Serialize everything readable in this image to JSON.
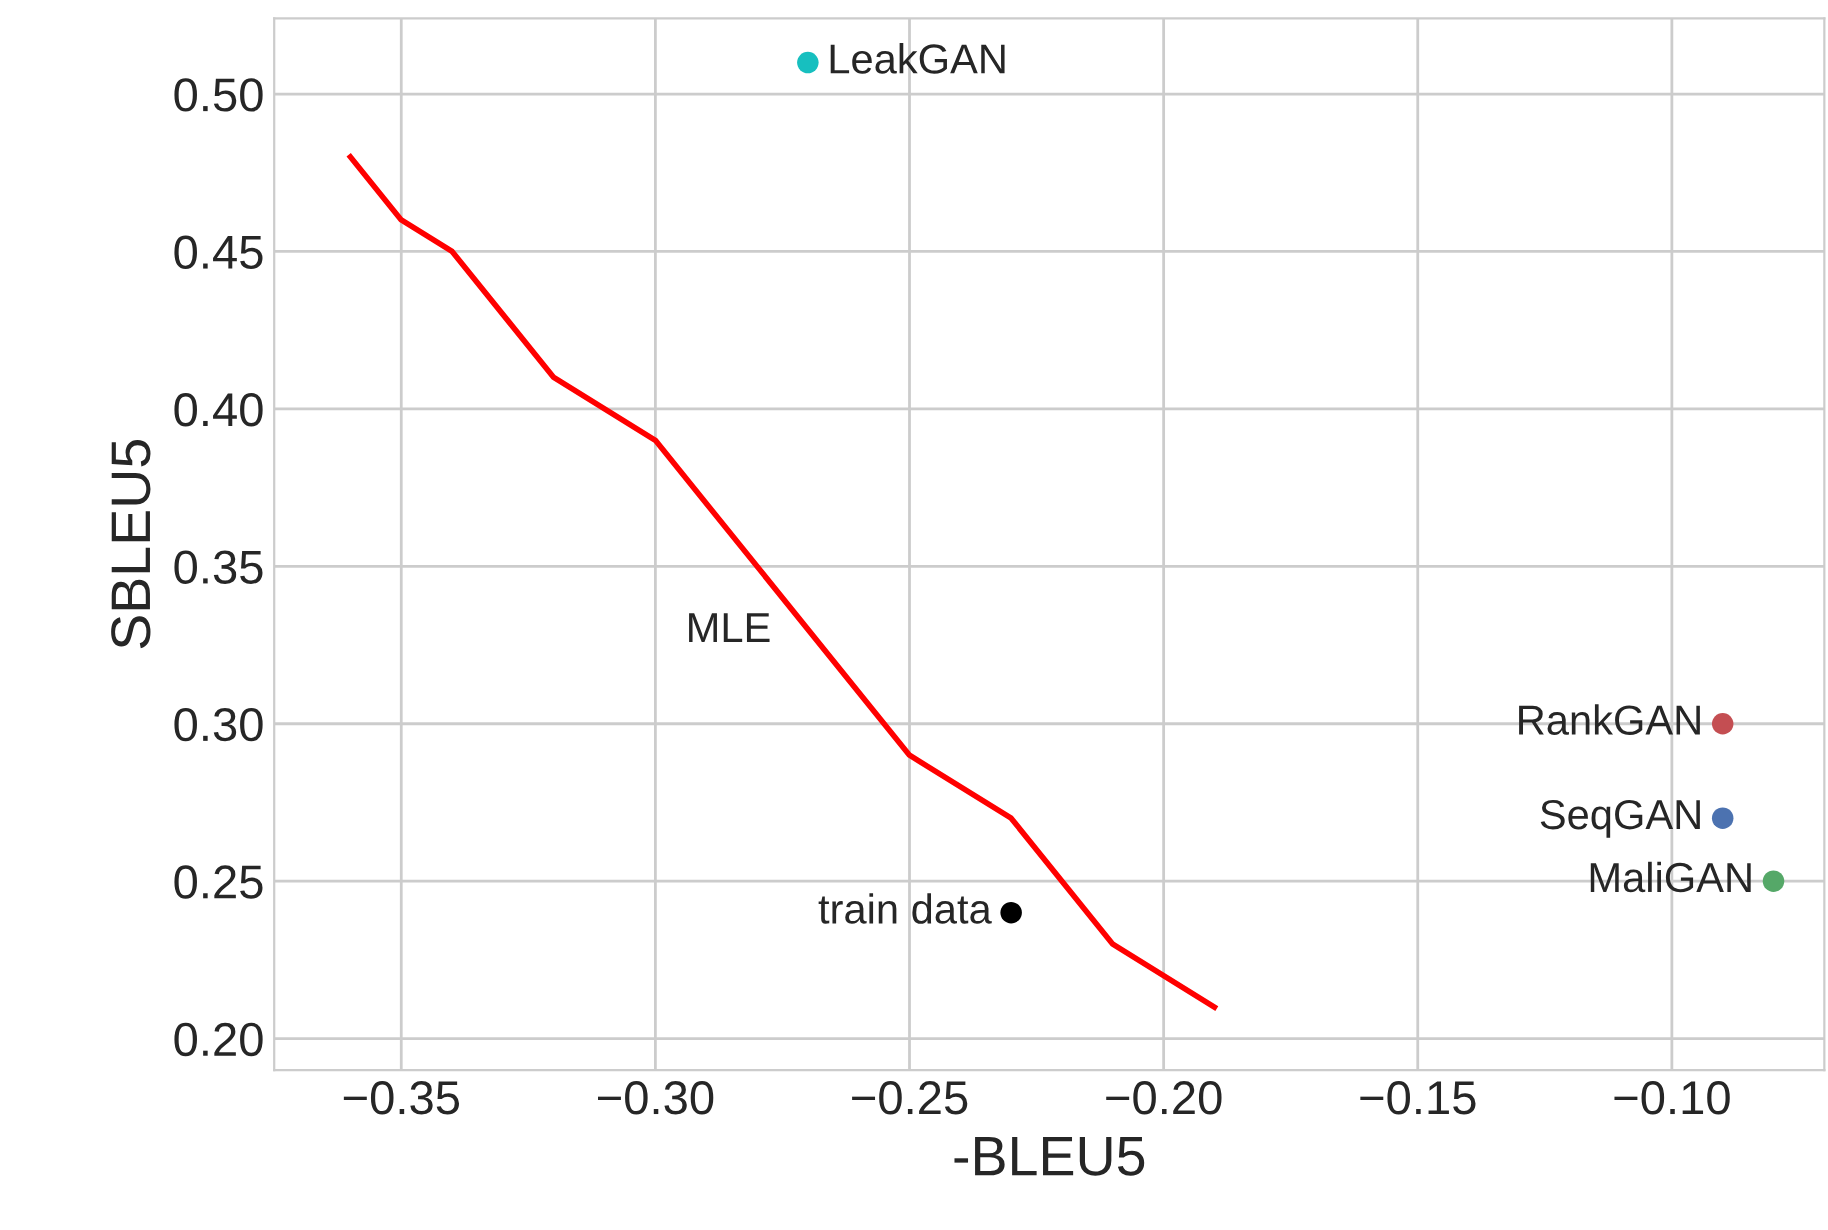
{
  "chart_data": {
    "type": "scatter",
    "xlabel": "-BLEU5",
    "ylabel": "SBLEU5",
    "xlim": [
      -0.375,
      -0.07
    ],
    "ylim": [
      0.19,
      0.524
    ],
    "xticks": [
      {
        "value": -0.35,
        "label": "−0.35"
      },
      {
        "value": -0.3,
        "label": "−0.30"
      },
      {
        "value": -0.25,
        "label": "−0.25"
      },
      {
        "value": -0.2,
        "label": "−0.20"
      },
      {
        "value": -0.15,
        "label": "−0.15"
      },
      {
        "value": -0.1,
        "label": "−0.10"
      }
    ],
    "yticks": [
      {
        "value": 0.2,
        "label": "0.20"
      },
      {
        "value": 0.25,
        "label": "0.25"
      },
      {
        "value": 0.3,
        "label": "0.30"
      },
      {
        "value": 0.35,
        "label": "0.35"
      },
      {
        "value": 0.4,
        "label": "0.40"
      },
      {
        "value": 0.45,
        "label": "0.45"
      },
      {
        "value": 0.5,
        "label": "0.50"
      }
    ],
    "grid": true,
    "series": [
      {
        "name": "MLE",
        "type": "line",
        "color": "#ff0000",
        "x": [
          -0.36,
          -0.35,
          -0.34,
          -0.32,
          -0.3,
          -0.25,
          -0.23,
          -0.21,
          -0.19
        ],
        "values": [
          0.48,
          0.46,
          0.45,
          0.41,
          0.39,
          0.29,
          0.27,
          0.23,
          0.21
        ]
      },
      {
        "name": "LeakGAN",
        "color": "#17bfbf",
        "marker": "circle",
        "x": [
          -0.27
        ],
        "values": [
          0.51
        ]
      },
      {
        "name": "train data",
        "color": "#000000",
        "marker": "circle",
        "x": [
          -0.23
        ],
        "values": [
          0.24
        ]
      },
      {
        "name": "RankGAN",
        "color": "#c44e52",
        "marker": "circle",
        "x": [
          -0.09
        ],
        "values": [
          0.3
        ]
      },
      {
        "name": "SeqGAN",
        "color": "#4c72b0",
        "marker": "circle",
        "x": [
          -0.09
        ],
        "values": [
          0.27
        ]
      },
      {
        "name": "MaliGAN",
        "color": "#55a868",
        "marker": "circle",
        "x": [
          -0.08
        ],
        "values": [
          0.25
        ]
      }
    ]
  }
}
